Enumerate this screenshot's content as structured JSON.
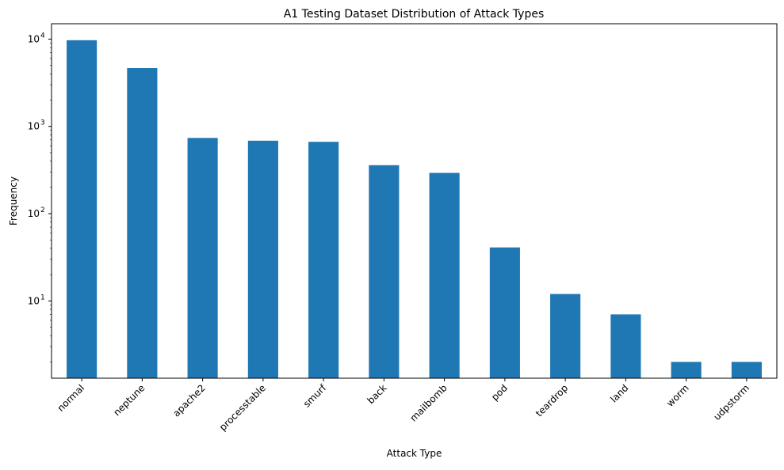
{
  "chart_data": {
    "type": "bar",
    "title": "A1 Testing Dataset Distribution of Attack Types",
    "xlabel": "Attack Type",
    "ylabel": "Frequency",
    "yscale": "log",
    "ylim": [
      1.3,
      15000
    ],
    "grid": false,
    "legend": "none",
    "categories": [
      "normal",
      "neptune",
      "apache2",
      "processtable",
      "smurf",
      "back",
      "mailbomb",
      "pod",
      "teardrop",
      "land",
      "worm",
      "udpstorm"
    ],
    "values": [
      9711,
      4657,
      737,
      685,
      665,
      359,
      293,
      41,
      12,
      7,
      2,
      2
    ],
    "y_ticks": [
      {
        "value": 10,
        "base": "10",
        "exp": "1"
      },
      {
        "value": 100,
        "base": "10",
        "exp": "2"
      },
      {
        "value": 1000,
        "base": "10",
        "exp": "3"
      },
      {
        "value": 10000,
        "base": "10",
        "exp": "4"
      }
    ],
    "bar_color": "#1f77b4"
  }
}
